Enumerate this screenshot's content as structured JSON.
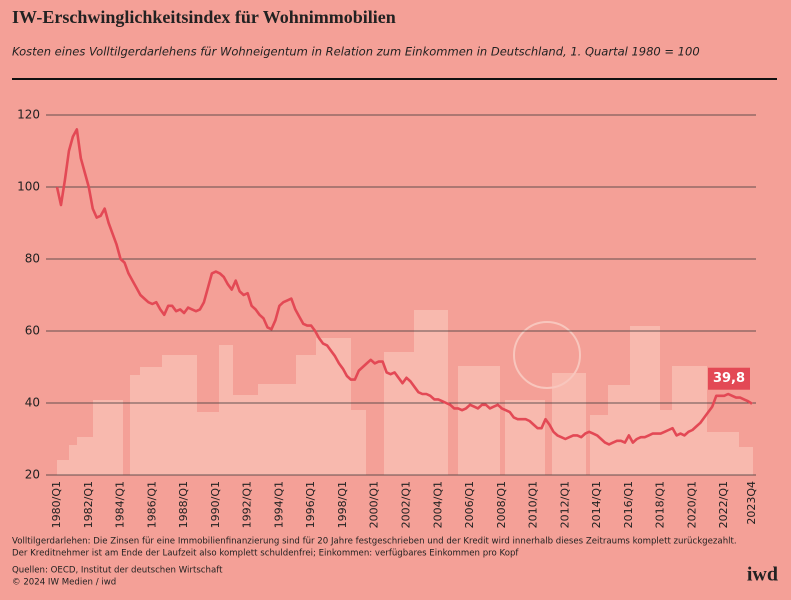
{
  "chart_data": {
    "type": "line",
    "title": "IW-Erschwinglichkeitsindex für Wohnimmobilien",
    "subtitle": "Kosten eines Volltilgerdarlehens für Wohneigentum in Relation zum Einkommen in Deutschland, 1. Quartal 1980 = 100",
    "categories": [
      "1980/Q1",
      null,
      null,
      null,
      null,
      null,
      null,
      null,
      "1982/Q1",
      null,
      null,
      null,
      null,
      null,
      null,
      null,
      "1984/Q1",
      null,
      null,
      null,
      null,
      null,
      null,
      null,
      "1986/Q1",
      null,
      null,
      null,
      null,
      null,
      null,
      null,
      "1988/Q1",
      null,
      null,
      null,
      null,
      null,
      null,
      null,
      "1990/Q1",
      null,
      null,
      null,
      null,
      null,
      null,
      null,
      "1992/Q1",
      null,
      null,
      null,
      null,
      null,
      null,
      null,
      "1994/Q1",
      null,
      null,
      null,
      null,
      null,
      null,
      null,
      "1996/Q1",
      null,
      null,
      null,
      null,
      null,
      null,
      null,
      "1998/Q1",
      null,
      null,
      null,
      null,
      null,
      null,
      null,
      "2000/Q1",
      null,
      null,
      null,
      null,
      null,
      null,
      null,
      "2002/Q1",
      null,
      null,
      null,
      null,
      null,
      null,
      null,
      "2004/Q1",
      null,
      null,
      null,
      null,
      null,
      null,
      null,
      "2006/Q1",
      null,
      null,
      null,
      null,
      null,
      null,
      null,
      "2008/Q1",
      null,
      null,
      null,
      null,
      null,
      null,
      null,
      "2010/Q1",
      null,
      null,
      null,
      null,
      null,
      null,
      null,
      "2012/Q1",
      null,
      null,
      null,
      null,
      null,
      null,
      null,
      "2014/Q1",
      null,
      null,
      null,
      null,
      null,
      null,
      null,
      "2016/Q1",
      null,
      null,
      null,
      null,
      null,
      null,
      null,
      "2018/Q1",
      null,
      null,
      null,
      null,
      null,
      null,
      null,
      "2020/Q1",
      null,
      null,
      null,
      null,
      null,
      null,
      null,
      "2022/Q1",
      null,
      null,
      null,
      null,
      null,
      null,
      "2023Q4"
    ],
    "values": [
      100,
      95,
      102,
      110,
      114,
      116,
      108,
      104,
      100,
      94,
      91.5,
      92,
      94,
      90,
      87,
      84,
      80,
      79,
      76,
      74,
      72,
      70,
      69,
      68,
      67.5,
      68,
      66,
      64.5,
      67,
      67,
      65.5,
      66,
      65,
      66.5,
      66,
      65.5,
      66,
      68,
      72,
      76,
      76.5,
      76,
      75,
      73,
      71.5,
      74,
      71,
      70,
      70.5,
      67,
      66,
      64.5,
      63.5,
      61,
      60.5,
      63,
      67,
      68,
      68.5,
      69,
      66,
      64,
      62,
      61.5,
      61.5,
      60,
      58,
      56.5,
      56,
      54.5,
      53,
      51,
      49.5,
      47.5,
      46.5,
      46.5,
      49,
      50,
      51,
      52,
      51,
      51.5,
      51.5,
      48.5,
      48,
      48.5,
      47,
      45.5,
      47,
      46,
      44.5,
      43,
      42.5,
      42.5,
      42,
      41,
      41,
      40.5,
      40,
      39.5,
      38.5,
      38.5,
      38,
      38.5,
      39.5,
      39,
      38.5,
      39.5,
      39.5,
      38.5,
      39,
      39.5,
      38.5,
      38,
      37.5,
      36,
      35.5,
      35.5,
      35.5,
      35,
      34,
      33,
      33,
      35.5,
      34,
      32,
      31,
      30.5,
      30,
      30.5,
      31,
      31,
      30.5,
      31.5,
      32,
      31.5,
      31,
      30,
      29,
      28.5,
      29,
      29.5,
      29.5,
      29,
      31,
      29,
      30,
      30.5,
      30.5,
      31,
      31.5,
      31.5,
      31.5,
      32,
      32.5,
      33,
      31,
      31.5,
      31,
      32,
      32.5,
      33.5,
      34.5,
      36,
      37.5,
      39,
      42,
      42,
      42,
      42.5,
      42,
      41.5,
      41.5,
      41,
      40.5,
      39.8
    ],
    "value_labels": [
      null,
      null,
      null,
      null,
      null,
      null,
      null,
      null,
      null,
      null,
      null,
      null,
      null,
      null,
      null,
      null,
      null,
      null,
      null,
      null,
      null,
      null,
      null,
      null,
      null,
      null,
      null,
      null,
      null,
      null,
      null,
      null,
      null,
      null,
      null,
      null,
      null,
      null,
      null,
      null,
      null,
      null,
      null,
      null,
      null,
      null,
      null,
      null,
      null,
      null,
      null,
      null,
      null,
      null,
      null,
      null,
      null,
      null,
      null,
      null,
      null,
      null,
      null,
      null,
      null,
      null,
      null,
      null,
      null,
      null,
      null,
      null,
      null,
      null,
      null,
      null,
      null,
      null,
      null,
      null,
      null,
      null,
      null,
      null,
      null,
      null,
      null,
      null,
      null,
      null,
      null,
      null,
      null,
      null,
      null,
      null,
      null,
      null,
      null,
      null,
      null,
      null,
      null,
      null,
      null,
      null,
      null,
      null,
      null,
      null,
      null,
      null,
      null,
      null,
      null,
      null,
      null,
      null,
      null,
      null,
      null,
      null,
      null,
      null,
      null,
      null,
      null,
      null,
      null,
      null,
      null,
      null,
      null,
      null,
      null,
      null,
      null,
      null,
      null,
      null,
      null,
      null,
      null,
      null,
      null,
      null,
      null,
      null,
      null,
      null,
      null,
      null,
      null,
      null,
      null,
      null,
      null,
      null,
      null,
      null,
      null,
      null,
      null,
      null,
      null,
      null,
      null,
      null,
      null,
      null,
      null,
      null,
      null,
      null,
      null,
      "39,8"
    ],
    "color": "#e34955",
    "ylim": [
      20,
      120
    ],
    "yticks": [
      20,
      40,
      60,
      80,
      100,
      120
    ],
    "grid": true
  },
  "notes": [
    "Volltilgerdarlehen: Die Zinsen für eine Immobilienfinanzierung sind für 20 Jahre festgeschrieben und der Kredit wird innerhalb dieses Zeitraums komplett zurückgezahlt.",
    "Der Kreditnehmer ist am Ende der Laufzeit also komplett schuldenfrei; Einkommen: verfügbares Einkommen pro Kopf"
  ],
  "source": "Quellen: OECD, Institut der deutschen Wirtschaft",
  "copyright": "© 2024 IW Medien / iwd",
  "logo": "iwd"
}
